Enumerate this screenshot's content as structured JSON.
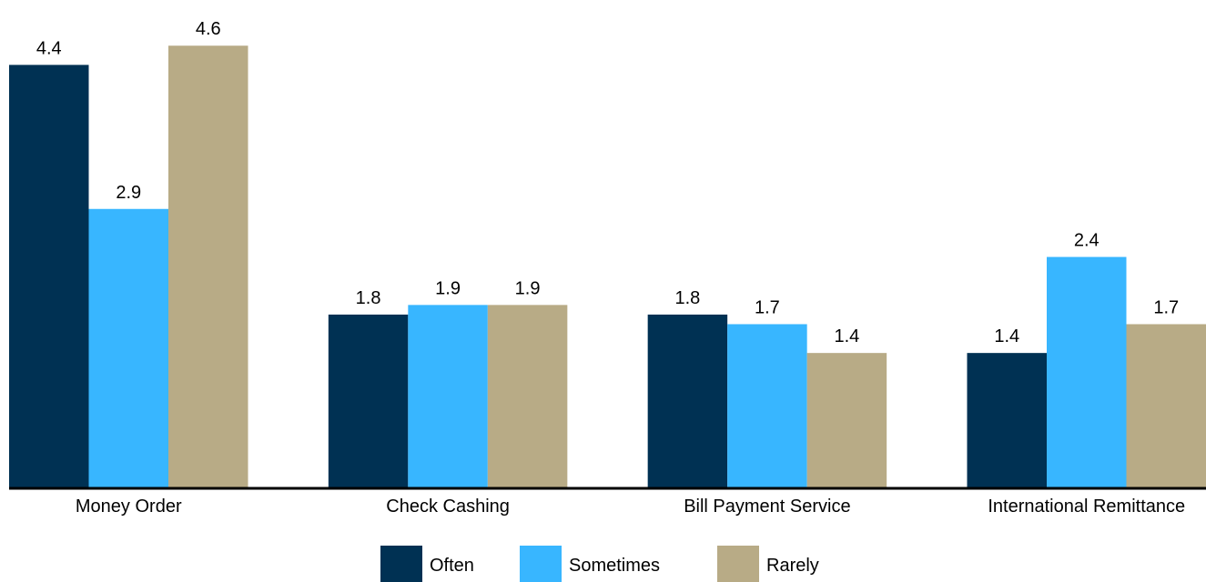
{
  "chart_data": {
    "type": "bar",
    "title": "",
    "xlabel": "",
    "ylabel": "",
    "categories": [
      "Money Order",
      "Check Cashing",
      "Bill Payment Service",
      "International Remittance"
    ],
    "series": [
      {
        "name": "Often",
        "color": "#003153",
        "values": [
          4.4,
          1.8,
          1.8,
          1.4
        ]
      },
      {
        "name": "Sometimes",
        "color": "#38b6ff",
        "values": [
          2.9,
          1.9,
          1.7,
          2.4
        ]
      },
      {
        "name": "Rarely",
        "color": "#b8ab86",
        "values": [
          4.6,
          1.9,
          1.4,
          1.7
        ]
      }
    ],
    "ylim": [
      0,
      5.0
    ],
    "grid": false,
    "legend": "bottom-center",
    "data_labels": true
  }
}
